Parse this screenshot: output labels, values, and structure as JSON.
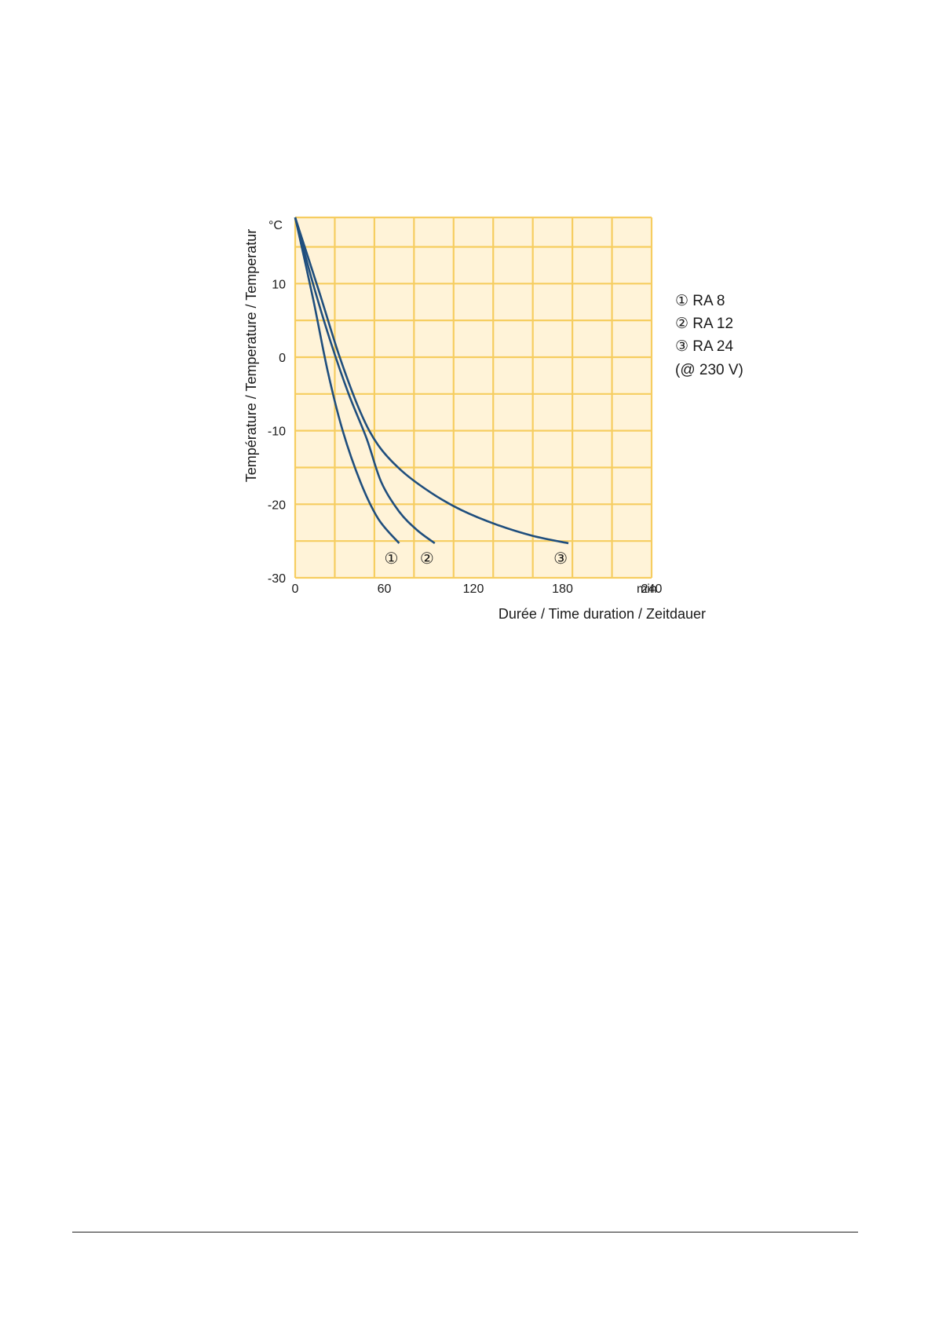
{
  "chart_data": {
    "type": "line",
    "ylabel": "Température / Temperature / Temperatur",
    "yunit": "°C",
    "xlabel": "Durée / Time duration / Zeitdauer",
    "xunit": "min",
    "xlim": [
      0,
      240
    ],
    "ylim": [
      -30,
      19
    ],
    "x_ticks": [
      "0",
      "60",
      "120",
      "180",
      "240"
    ],
    "y_ticks": [
      "10",
      "0",
      "-10",
      "-20",
      "-30"
    ],
    "grid": true,
    "legend_placement": "right",
    "legend_note": "(@ 230 V)",
    "colors": {
      "plot_background": "#fff3d8",
      "grid": "#f6cd60",
      "curve": "#1f4e7d"
    },
    "series": [
      {
        "name": "RA 8",
        "marker": "①",
        "points": [
          [
            0,
            19
          ],
          [
            12,
            8
          ],
          [
            22,
            -2
          ],
          [
            32,
            -10
          ],
          [
            44,
            -17
          ],
          [
            56,
            -22
          ],
          [
            70,
            -25.3
          ]
        ]
      },
      {
        "name": "RA 12",
        "marker": "②",
        "points": [
          [
            0,
            19
          ],
          [
            12,
            10
          ],
          [
            24,
            2
          ],
          [
            36,
            -5
          ],
          [
            48,
            -11
          ],
          [
            58,
            -17
          ],
          [
            70,
            -21
          ],
          [
            82,
            -23.5
          ],
          [
            94,
            -25.3
          ]
        ]
      },
      {
        "name": "RA 24",
        "marker": "③",
        "points": [
          [
            0,
            19
          ],
          [
            16,
            9
          ],
          [
            30,
            0
          ],
          [
            44,
            -7.5
          ],
          [
            56,
            -12
          ],
          [
            72,
            -15.5
          ],
          [
            92,
            -18.5
          ],
          [
            112,
            -20.8
          ],
          [
            136,
            -22.8
          ],
          [
            160,
            -24.3
          ],
          [
            184,
            -25.3
          ]
        ]
      }
    ]
  }
}
